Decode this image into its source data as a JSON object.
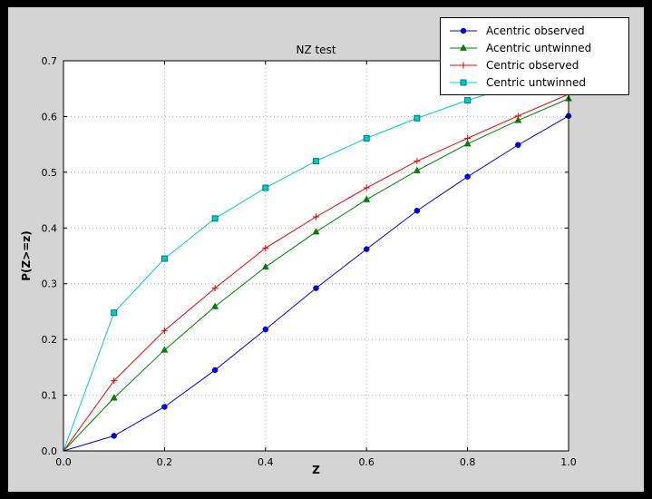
{
  "figure": {
    "title": "NZ test",
    "xlabel": "Z",
    "ylabel": "P(Z>=z)",
    "outer_background": "#000000",
    "figure_facecolor": "#d4d4d4",
    "plot_facecolor": "#ffffff",
    "grid_color": "#b0b0b0",
    "axis_color": "#000000"
  },
  "chart_data": {
    "type": "line",
    "title": "NZ test",
    "xlabel": "Z",
    "ylabel": "P(Z>=z)",
    "xlim": [
      0.0,
      1.0
    ],
    "ylim": [
      0.0,
      0.7
    ],
    "grid": true,
    "legend_position": "upper right",
    "x_ticks": [
      0.0,
      0.2,
      0.4,
      0.6,
      0.8,
      1.0
    ],
    "x_tick_labels": [
      "0.0",
      "0.2",
      "0.4",
      "0.6",
      "0.8",
      "1.0"
    ],
    "y_ticks": [
      0.0,
      0.1,
      0.2,
      0.3,
      0.4,
      0.5,
      0.6,
      0.7
    ],
    "y_tick_labels": [
      "0.0",
      "0.1",
      "0.2",
      "0.3",
      "0.4",
      "0.5",
      "0.6",
      "0.7"
    ],
    "x": [
      0.0,
      0.1,
      0.2,
      0.3,
      0.4,
      0.5,
      0.6,
      0.7,
      0.8,
      0.9,
      1.0
    ],
    "series": [
      {
        "name": "Acentric observed",
        "color": "#0000dd",
        "marker": "circle",
        "marker_edge": "#0000dd",
        "values": [
          0.0,
          0.027,
          0.079,
          0.145,
          0.218,
          0.292,
          0.362,
          0.431,
          0.492,
          0.549,
          0.601
        ]
      },
      {
        "name": "Acentric untwinned",
        "color": "#007f00",
        "marker": "triangle",
        "marker_edge": "#007f00",
        "values": [
          0.0,
          0.095,
          0.181,
          0.259,
          0.33,
          0.393,
          0.451,
          0.503,
          0.551,
          0.593,
          0.632
        ]
      },
      {
        "name": "Centric observed",
        "color": "#ee0000",
        "marker": "plus",
        "marker_edge": "#ee0000",
        "values": [
          0.0,
          0.126,
          0.216,
          0.292,
          0.364,
          0.42,
          0.472,
          0.52,
          0.561,
          0.601,
          0.64
        ]
      },
      {
        "name": "Centric untwinned",
        "color": "#00cccc",
        "marker": "square",
        "marker_edge": "#007a7a",
        "values": [
          0.0,
          0.248,
          0.345,
          0.417,
          0.472,
          0.52,
          0.561,
          0.597,
          0.629,
          0.657,
          0.683
        ]
      }
    ]
  }
}
